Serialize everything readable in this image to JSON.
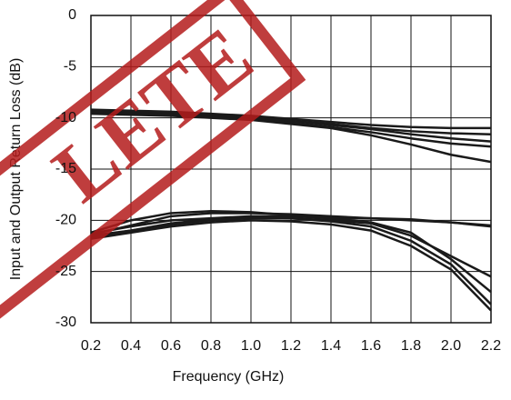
{
  "chart_data": {
    "type": "line",
    "xlabel": "Frequency (GHz)",
    "ylabel": "Input and Output Return Loss (dB)",
    "annotation": "LETE",
    "x": [
      0.2,
      0.4,
      0.6,
      0.8,
      1.0,
      1.2,
      1.4,
      1.6,
      1.8,
      2.0,
      2.2
    ],
    "series": [
      {
        "color": "#1a1a1a",
        "values": [
          -9.2,
          -9.3,
          -9.4,
          -9.6,
          -9.8,
          -10.1,
          -10.4,
          -10.7,
          -10.9,
          -11.0,
          -11.0
        ]
      },
      {
        "color": "#1a1a1a",
        "values": [
          -9.4,
          -9.5,
          -9.6,
          -9.8,
          -10.0,
          -10.3,
          -10.6,
          -11.0,
          -11.3,
          -11.5,
          -11.6
        ]
      },
      {
        "color": "#1a1a1a",
        "values": [
          -9.3,
          -9.4,
          -9.5,
          -9.7,
          -9.9,
          -10.3,
          -10.7,
          -11.1,
          -11.6,
          -12.0,
          -12.3
        ]
      },
      {
        "color": "#1a1a1a",
        "values": [
          -9.5,
          -9.6,
          -9.7,
          -9.9,
          -10.1,
          -10.5,
          -10.9,
          -11.4,
          -12.0,
          -12.5,
          -12.8
        ]
      },
      {
        "color": "#1a1a1a",
        "values": [
          -9.6,
          -9.7,
          -9.8,
          -10.0,
          -10.2,
          -10.6,
          -11.0,
          -11.7,
          -12.6,
          -13.6,
          -14.3
        ]
      },
      {
        "color": "#1a1a1a",
        "values": [
          -21.5,
          -21.0,
          -20.3,
          -19.9,
          -19.7,
          -19.8,
          -20.0,
          -20.3,
          -21.5,
          -23.5,
          -25.5
        ]
      },
      {
        "color": "#1a1a1a",
        "values": [
          -21.3,
          -20.6,
          -20.0,
          -19.8,
          -19.6,
          -19.6,
          -19.8,
          -20.2,
          -21.2,
          -23.8,
          -27.0
        ]
      },
      {
        "color": "#1a1a1a",
        "values": [
          -21.6,
          -21.0,
          -20.4,
          -20.0,
          -19.8,
          -19.8,
          -20.1,
          -20.6,
          -22.0,
          -24.3,
          -28.2
        ]
      },
      {
        "color": "#1a1a1a",
        "values": [
          -21.2,
          -20.0,
          -19.3,
          -19.1,
          -19.2,
          -19.5,
          -19.8,
          -19.8,
          -20.0,
          -20.2,
          -20.6
        ]
      },
      {
        "color": "#1a1a1a",
        "values": [
          -21.4,
          -20.5,
          -19.6,
          -19.3,
          -19.3,
          -19.4,
          -19.6,
          -19.8,
          -19.9,
          -20.2,
          -20.5
        ]
      },
      {
        "color": "#1a1a1a",
        "values": [
          -21.8,
          -21.2,
          -20.6,
          -20.2,
          -20.0,
          -20.1,
          -20.4,
          -21.0,
          -22.5,
          -24.8,
          -28.8
        ]
      }
    ],
    "xlim": [
      0.2,
      2.2
    ],
    "xticks": [
      0.2,
      0.4,
      0.6,
      0.8,
      {
        "value": 1,
        "label": "1.0"
      },
      1.2,
      1.4,
      1.6,
      1.8,
      {
        "value": 2,
        "label": "2.0"
      },
      2.2
    ],
    "ylim": [
      -30,
      0
    ],
    "yticks": [
      0,
      -5,
      -10,
      -15,
      -20,
      -25,
      -30
    ],
    "grid": true
  }
}
